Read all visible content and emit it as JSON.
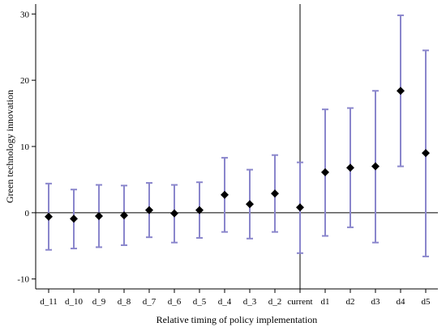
{
  "chart_data": {
    "type": "scatter",
    "subtype": "coefficient-plot-with-error-bars",
    "xlabel": "Relative timing of policy implementation",
    "ylabel": "Green technology innovation",
    "categories": [
      "d_11",
      "d_10",
      "d_9",
      "d_8",
      "d_7",
      "d_6",
      "d_5",
      "d_4",
      "d_3",
      "d_2",
      "current",
      "d1",
      "d2",
      "d3",
      "d4",
      "d5"
    ],
    "series": [
      {
        "estimates": [
          -0.6,
          -0.9,
          -0.5,
          -0.4,
          0.4,
          -0.1,
          0.4,
          2.7,
          1.3,
          2.9,
          0.8,
          6.1,
          6.8,
          7.0,
          18.4,
          9.0
        ],
        "lower": [
          -5.6,
          -5.4,
          -5.2,
          -4.9,
          -3.7,
          -4.5,
          -3.8,
          -2.9,
          -3.9,
          -2.9,
          -6.1,
          -3.5,
          -2.2,
          -4.5,
          7.0,
          -6.6
        ],
        "upper": [
          4.4,
          3.5,
          4.2,
          4.1,
          4.5,
          4.2,
          4.6,
          8.3,
          6.5,
          8.7,
          7.6,
          15.6,
          15.8,
          18.4,
          29.8,
          24.5
        ]
      }
    ],
    "yticks": [
      -10,
      0,
      10,
      20,
      30
    ],
    "ylim": [
      -11.5,
      31.5
    ],
    "reference_lines": {
      "horizontal_at_y": 0,
      "vertical_at_category": "current"
    },
    "grid": false,
    "colors": {
      "error_bar": "#8a86cc",
      "marker": "#000000",
      "axis": "#000000"
    },
    "marker": "diamond"
  }
}
